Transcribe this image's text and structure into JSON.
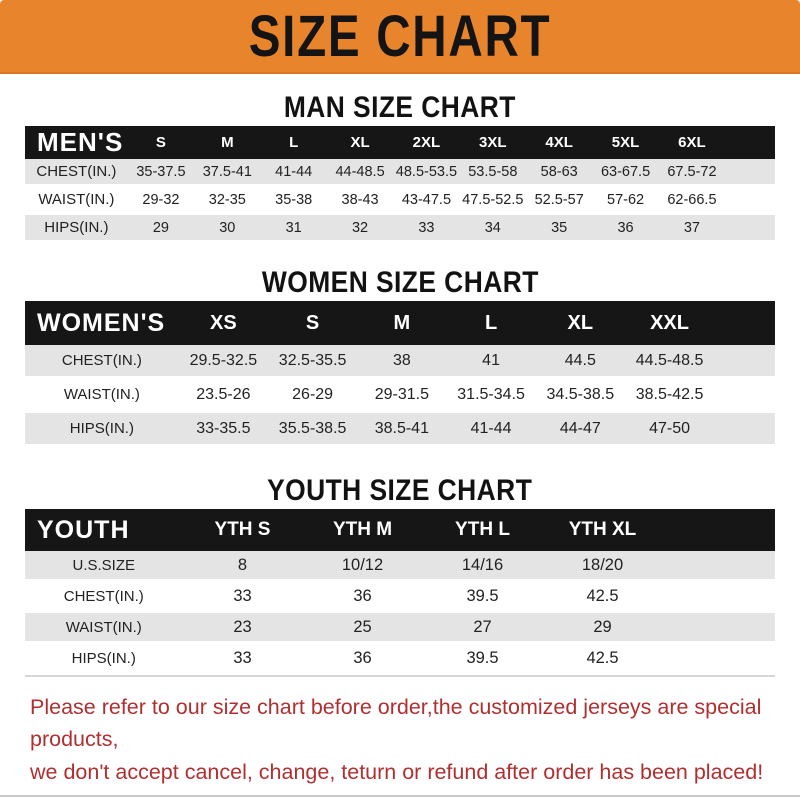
{
  "banner": {
    "title": "SIZE CHART"
  },
  "colors": {
    "banner_bg": "#E8842C",
    "banner_text": "#141414",
    "header_bg": "#161616",
    "header_text": "#FFFFFF",
    "row_alt_bg": "#E4E4E4",
    "cell_text": "#222222",
    "footer_text": "#B03030"
  },
  "sections": {
    "men": {
      "heading": "MAN SIZE CHART",
      "table": {
        "label": "MEN'S",
        "columns": [
          "S",
          "M",
          "L",
          "XL",
          "2XL",
          "3XL",
          "4XL",
          "5XL",
          "6XL"
        ],
        "rows": [
          {
            "label": "CHEST(IN.)",
            "values": [
              "35-37.5",
              "37.5-41",
              "41-44",
              "44-48.5",
              "48.5-53.5",
              "53.5-58",
              "58-63",
              "63-67.5",
              "67.5-72"
            ]
          },
          {
            "label": "WAIST(IN.)",
            "values": [
              "29-32",
              "32-35",
              "35-38",
              "38-43",
              "43-47.5",
              "47.5-52.5",
              "52.5-57",
              "57-62",
              "62-66.5"
            ]
          },
          {
            "label": "HIPS(IN.)",
            "values": [
              "29",
              "30",
              "31",
              "32",
              "33",
              "34",
              "35",
              "36",
              "37"
            ]
          }
        ]
      }
    },
    "women": {
      "heading": "WOMEN SIZE CHART",
      "table": {
        "label": "WOMEN'S",
        "columns": [
          "XS",
          "S",
          "M",
          "L",
          "XL",
          "XXL"
        ],
        "rows": [
          {
            "label": "CHEST(IN.)",
            "values": [
              "29.5-32.5",
              "32.5-35.5",
              "38",
              "41",
              "44.5",
              "44.5-48.5"
            ]
          },
          {
            "label": "WAIST(IN.)",
            "values": [
              "23.5-26",
              "26-29",
              "29-31.5",
              "31.5-34.5",
              "34.5-38.5",
              "38.5-42.5"
            ]
          },
          {
            "label": "HIPS(IN.)",
            "values": [
              "33-35.5",
              "35.5-38.5",
              "38.5-41",
              "41-44",
              "44-47",
              "47-50"
            ]
          }
        ]
      }
    },
    "youth": {
      "heading": "YOUTH SIZE CHART",
      "table": {
        "label": "YOUTH",
        "columns": [
          "YTH S",
          "YTH M",
          "YTH L",
          "YTH XL"
        ],
        "rows": [
          {
            "label": "U.S.SIZE",
            "values": [
              "8",
              "10/12",
              "14/16",
              "18/20"
            ]
          },
          {
            "label": "CHEST(IN.)",
            "values": [
              "33",
              "36",
              "39.5",
              "42.5"
            ]
          },
          {
            "label": "WAIST(IN.)",
            "values": [
              "23",
              "25",
              "27",
              "29"
            ]
          },
          {
            "label": "HIPS(IN.)",
            "values": [
              "33",
              "36",
              "39.5",
              "42.5"
            ]
          }
        ]
      }
    }
  },
  "footer": {
    "lines": [
      "Please refer to our size chart before order,the customized jerseys are special products,",
      "we don't accept cancel, change, teturn or refund after order has been placed!"
    ]
  }
}
